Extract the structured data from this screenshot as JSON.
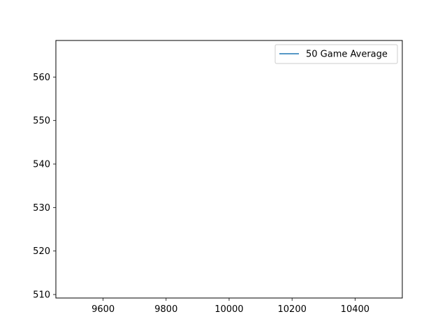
{
  "chart_data": {
    "type": "line",
    "title": "",
    "xlabel": "",
    "ylabel": "",
    "xlim": [
      9450,
      10550
    ],
    "ylim": [
      509.2,
      568.4
    ],
    "xticks": [
      9600,
      9800,
      10000,
      10200,
      10400
    ],
    "yticks": [
      510,
      520,
      530,
      540,
      550,
      560
    ],
    "xtick_labels": [
      "9600",
      "9800",
      "10000",
      "10200",
      "10400"
    ],
    "ytick_labels": [
      "510",
      "520",
      "530",
      "540",
      "550",
      "560"
    ],
    "grid": false,
    "legend_position": "upper right",
    "series": [
      {
        "name": "50 Game Average",
        "color": "#1f77b4",
        "x": [],
        "y": []
      }
    ]
  }
}
